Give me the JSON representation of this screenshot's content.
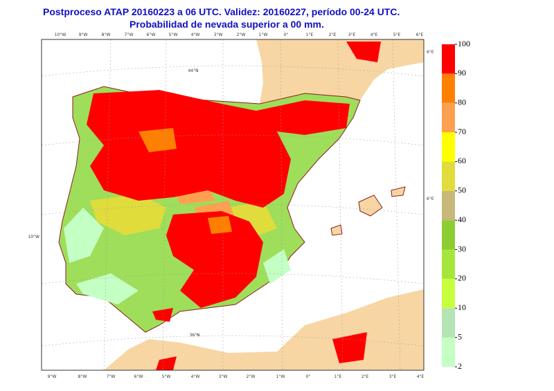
{
  "header": {
    "title": "Postproceso ATAP 20160223 a 06 UTC. Validez: 20160227, período 00-24 UTC.",
    "subtitle": "Probabilidad de nevada superior a 00 mm."
  },
  "legend": {
    "levels": [
      2,
      5,
      10,
      20,
      30,
      40,
      50,
      60,
      70,
      80,
      90,
      100
    ],
    "colors": [
      "#c4ffc4",
      "#b4e4b4",
      "#c8ff3c",
      "#a6e63c",
      "#8ccd32",
      "#c8b87a",
      "#e0dc3c",
      "#ffff00",
      "#ffa050",
      "#ff8000",
      "#ff0000"
    ]
  },
  "map_labels": {
    "top": [
      "10°W",
      "9°W",
      "8°W",
      "7°W",
      "6°W",
      "5°W",
      "4°W",
      "3°W",
      "2°W",
      "1°W",
      "0°",
      "1°E",
      "2°E",
      "3°E",
      "4°E",
      "5°E",
      "6°E"
    ],
    "bottom": [
      "9°W",
      "8°W",
      "7°W",
      "6°W",
      "5°W",
      "4°W",
      "3°W",
      "2°W",
      "1°W",
      "0°",
      "1°E",
      "2°E",
      "3°E",
      "4°E"
    ],
    "left": [
      "10°W"
    ],
    "right": [
      "6°E",
      "6°E"
    ],
    "inner": [
      "44°N",
      "36°N"
    ]
  }
}
